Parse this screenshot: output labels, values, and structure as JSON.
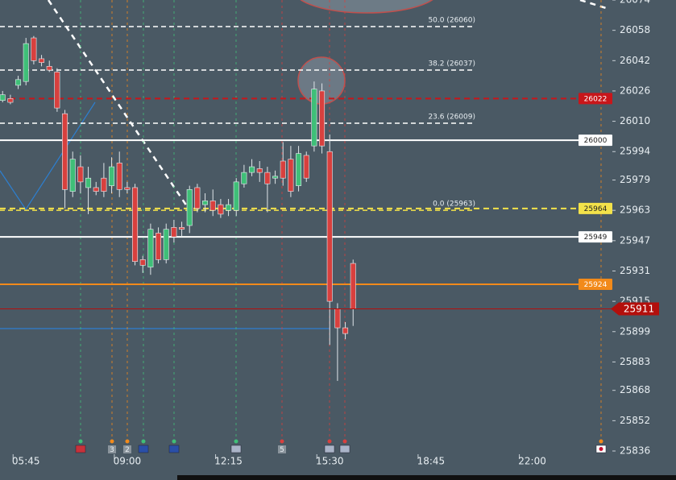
{
  "chart_data": {
    "type": "candlestick",
    "xlim": [
      295,
      1451
    ],
    "xticks": [
      {
        "value": 345,
        "label": "05:45"
      },
      {
        "value": 540,
        "label": "09:00"
      },
      {
        "value": 735,
        "label": "12:15"
      },
      {
        "value": 930,
        "label": "15:30"
      },
      {
        "value": 1125,
        "label": "18:45"
      },
      {
        "value": 1320,
        "label": "22:00"
      }
    ],
    "ylim": [
      25836,
      26074
    ],
    "yticks": [
      26074,
      26058,
      26042,
      26026,
      26010,
      25994,
      25979,
      25963,
      25947,
      25931,
      25915,
      25899,
      25883,
      25868,
      25852,
      25836
    ],
    "x": [
      300,
      315,
      330,
      345,
      360,
      375,
      390,
      405,
      420,
      435,
      450,
      465,
      480,
      495,
      510,
      525,
      540,
      555,
      570,
      585,
      600,
      615,
      630,
      645,
      660,
      675,
      690,
      705,
      720,
      735,
      750,
      765,
      780,
      795,
      810,
      825,
      840,
      855,
      870,
      885,
      900,
      915,
      930,
      945,
      960,
      975
    ],
    "open": [
      26021,
      26022,
      26029,
      26031,
      26054,
      26043,
      26039,
      26036,
      26014,
      25973,
      25986,
      25975,
      25975,
      25980,
      25976,
      25988,
      25975,
      25975,
      25937,
      25933,
      25951,
      25937,
      25954,
      25954,
      25955,
      25975,
      25966,
      25968,
      25966,
      25963,
      25963,
      25977,
      25983,
      25985,
      25983,
      25980,
      25989,
      25990,
      25976,
      25992,
      25997,
      26026,
      25994,
      25911,
      25901,
      25935
    ],
    "high": [
      26026,
      26024,
      26034,
      26054,
      26055,
      26045,
      26042,
      26038,
      26016,
      25994,
      25992,
      25986,
      25978,
      25988,
      25991,
      25994,
      25978,
      25977,
      25939,
      25956,
      25954,
      25956,
      25958,
      25957,
      25976,
      25977,
      25972,
      25974,
      25969,
      25969,
      25980,
      25987,
      25990,
      25989,
      25986,
      25984,
      25999,
      25997,
      25997,
      25994,
      26031,
      26030,
      26003,
      25914,
      25904,
      25937
    ],
    "low": [
      26020,
      26019,
      26027,
      26029,
      26040,
      26039,
      26036,
      26015,
      25964,
      25970,
      25972,
      25961,
      25971,
      25970,
      25972,
      25970,
      25972,
      25934,
      25930,
      25929,
      25935,
      25935,
      25946,
      25949,
      25951,
      25962,
      25962,
      25960,
      25959,
      25960,
      25960,
      25975,
      25981,
      25978,
      25962,
      25977,
      25976,
      25970,
      25973,
      25978,
      25994,
      25993,
      25892,
      25873,
      25895,
      25902
    ],
    "close": [
      26024,
      26020,
      26032,
      26051,
      26042,
      26041,
      26037,
      26017,
      25974,
      25990,
      25978,
      25980,
      25973,
      25973,
      25986,
      25974,
      25974,
      25936,
      25934,
      25953,
      25937,
      25953,
      25949,
      25953,
      25974,
      25964,
      25968,
      25963,
      25961,
      25966,
      25978,
      25983,
      25986,
      25983,
      25977,
      25981,
      25980,
      25973,
      25993,
      25980,
      26027,
      25997,
      25915,
      25901,
      25898,
      25911
    ],
    "up_color": "#3fbf78",
    "down_color": "#d8403e",
    "fib_levels": [
      {
        "value": 26060,
        "label": "50.0 (26060)",
        "color": "#ffffff"
      },
      {
        "value": 26037,
        "label": "38.2 (26037)",
        "color": "#ffffff"
      },
      {
        "value": 26009,
        "label": "23.6 (26009)",
        "color": "#ffffff"
      },
      {
        "value": 25963,
        "label": "0.0 (25963)",
        "color": "#f3e24a"
      }
    ],
    "levels": [
      {
        "value": 26022,
        "color": "#c8161a",
        "text_color": "#ffffff",
        "dashed": true
      },
      {
        "value": 26000,
        "color": "#ffffff",
        "text_color": "#222222",
        "dashed": false
      },
      {
        "value": 25964,
        "color": "#f3e24a",
        "text_color": "#222222",
        "dashed": true
      },
      {
        "value": 25949,
        "color": "#ffffff",
        "text_color": "#222222",
        "dashed": false
      },
      {
        "value": 25924,
        "color": "#f28a1a",
        "text_color": "#ffffff",
        "dashed": false
      }
    ],
    "current_price": {
      "value": 25911,
      "color": "#b30f0c"
    },
    "event_badges": [
      "3",
      "2",
      "5"
    ]
  }
}
